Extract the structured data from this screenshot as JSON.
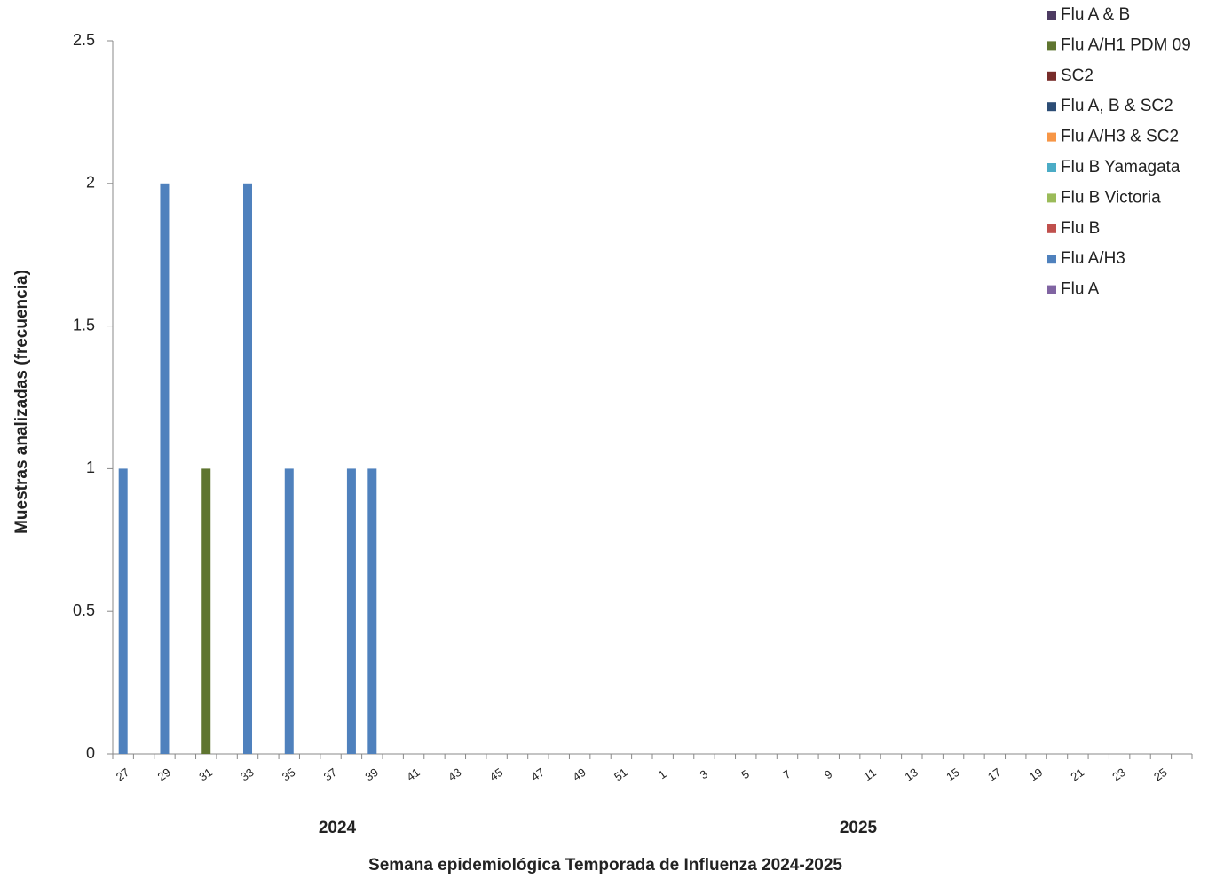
{
  "chart_data": {
    "type": "stacked_bar",
    "y_label": "Muestras analizadas (frecuencia)",
    "x_label": "Semana epidemiológica Temporada de Influenza 2024-2025",
    "groups": [
      "2024",
      "2025"
    ],
    "categories": [
      "27",
      null,
      "29",
      null,
      "31",
      null,
      "33",
      null,
      "35",
      null,
      "37",
      null,
      "39",
      null,
      "41",
      null,
      "43",
      null,
      "45",
      null,
      "47",
      null,
      "49",
      null,
      "51",
      null,
      "1",
      null,
      "3",
      null,
      "5",
      null,
      "7",
      null,
      "9",
      null,
      "11",
      null,
      "13",
      null,
      "15",
      null,
      "17",
      null,
      "19",
      null,
      "21",
      null,
      "23",
      null,
      "25",
      null
    ],
    "ylim": [
      0,
      2.5
    ],
    "yticks": [
      0,
      0.5,
      1,
      1.5,
      2,
      2.5
    ],
    "series": [
      {
        "name": "Flu A",
        "color": "#8064a2",
        "values": [
          0,
          0,
          0,
          0,
          0,
          0,
          0,
          0,
          0,
          0,
          0,
          0,
          0,
          0,
          0,
          0,
          0,
          0,
          0,
          0,
          0,
          0,
          0,
          0,
          0,
          0,
          0,
          0,
          0,
          0,
          0,
          0,
          0,
          0,
          0,
          0,
          0,
          0,
          0,
          0,
          0,
          0,
          0,
          0,
          0,
          0,
          0,
          0,
          0,
          0,
          0,
          0
        ]
      },
      {
        "name": "Flu A/H3",
        "color": "#4f81bd",
        "values": [
          1,
          0,
          2,
          0,
          0,
          0,
          2,
          0,
          1,
          0,
          0,
          1,
          1,
          0,
          0,
          0,
          0,
          0,
          0,
          0,
          0,
          0,
          0,
          0,
          0,
          0,
          0,
          0,
          0,
          0,
          0,
          0,
          0,
          0,
          0,
          0,
          0,
          0,
          0,
          0,
          0,
          0,
          0,
          0,
          0,
          0,
          0,
          0,
          0,
          0,
          0,
          0
        ]
      },
      {
        "name": "Flu B",
        "color": "#c0504d",
        "values": [
          0,
          0,
          0,
          0,
          0,
          0,
          0,
          0,
          0,
          0,
          0,
          0,
          0,
          0,
          0,
          0,
          0,
          0,
          0,
          0,
          0,
          0,
          0,
          0,
          0,
          0,
          0,
          0,
          0,
          0,
          0,
          0,
          0,
          0,
          0,
          0,
          0,
          0,
          0,
          0,
          0,
          0,
          0,
          0,
          0,
          0,
          0,
          0,
          0,
          0,
          0,
          0
        ]
      },
      {
        "name": "Flu B Victoria",
        "color": "#9bbb59",
        "values": [
          0,
          0,
          0,
          0,
          0,
          0,
          0,
          0,
          0,
          0,
          0,
          0,
          0,
          0,
          0,
          0,
          0,
          0,
          0,
          0,
          0,
          0,
          0,
          0,
          0,
          0,
          0,
          0,
          0,
          0,
          0,
          0,
          0,
          0,
          0,
          0,
          0,
          0,
          0,
          0,
          0,
          0,
          0,
          0,
          0,
          0,
          0,
          0,
          0,
          0,
          0,
          0
        ]
      },
      {
        "name": "Flu B Yamagata",
        "color": "#4bacc6",
        "values": [
          0,
          0,
          0,
          0,
          0,
          0,
          0,
          0,
          0,
          0,
          0,
          0,
          0,
          0,
          0,
          0,
          0,
          0,
          0,
          0,
          0,
          0,
          0,
          0,
          0,
          0,
          0,
          0,
          0,
          0,
          0,
          0,
          0,
          0,
          0,
          0,
          0,
          0,
          0,
          0,
          0,
          0,
          0,
          0,
          0,
          0,
          0,
          0,
          0,
          0,
          0,
          0
        ]
      },
      {
        "name": "Flu A/H3 & SC2",
        "color": "#f79646",
        "values": [
          0,
          0,
          0,
          0,
          0,
          0,
          0,
          0,
          0,
          0,
          0,
          0,
          0,
          0,
          0,
          0,
          0,
          0,
          0,
          0,
          0,
          0,
          0,
          0,
          0,
          0,
          0,
          0,
          0,
          0,
          0,
          0,
          0,
          0,
          0,
          0,
          0,
          0,
          0,
          0,
          0,
          0,
          0,
          0,
          0,
          0,
          0,
          0,
          0,
          0,
          0,
          0
        ]
      },
      {
        "name": "Flu A, B & SC2",
        "color": "#2c4d75",
        "values": [
          0,
          0,
          0,
          0,
          0,
          0,
          0,
          0,
          0,
          0,
          0,
          0,
          0,
          0,
          0,
          0,
          0,
          0,
          0,
          0,
          0,
          0,
          0,
          0,
          0,
          0,
          0,
          0,
          0,
          0,
          0,
          0,
          0,
          0,
          0,
          0,
          0,
          0,
          0,
          0,
          0,
          0,
          0,
          0,
          0,
          0,
          0,
          0,
          0,
          0,
          0,
          0
        ]
      },
      {
        "name": "SC2",
        "color": "#772c2a",
        "values": [
          0,
          0,
          0,
          0,
          0,
          0,
          0,
          0,
          0,
          0,
          0,
          0,
          0,
          0,
          0,
          0,
          0,
          0,
          0,
          0,
          0,
          0,
          0,
          0,
          0,
          0,
          0,
          0,
          0,
          0,
          0,
          0,
          0,
          0,
          0,
          0,
          0,
          0,
          0,
          0,
          0,
          0,
          0,
          0,
          0,
          0,
          0,
          0,
          0,
          0,
          0,
          0
        ]
      },
      {
        "name": "Flu A/H1 PDM 09",
        "color": "#5f7530",
        "values": [
          0,
          0,
          0,
          0,
          1,
          0,
          0,
          0,
          0,
          0,
          0,
          0,
          0,
          0,
          0,
          0,
          0,
          0,
          0,
          0,
          0,
          0,
          0,
          0,
          0,
          0,
          0,
          0,
          0,
          0,
          0,
          0,
          0,
          0,
          0,
          0,
          0,
          0,
          0,
          0,
          0,
          0,
          0,
          0,
          0,
          0,
          0,
          0,
          0,
          0,
          0,
          0
        ]
      },
      {
        "name": "Flu A & B",
        "color": "#4d3b62",
        "values": [
          0,
          0,
          0,
          0,
          0,
          0,
          0,
          0,
          0,
          0,
          0,
          0,
          0,
          0,
          0,
          0,
          0,
          0,
          0,
          0,
          0,
          0,
          0,
          0,
          0,
          0,
          0,
          0,
          0,
          0,
          0,
          0,
          0,
          0,
          0,
          0,
          0,
          0,
          0,
          0,
          0,
          0,
          0,
          0,
          0,
          0,
          0,
          0,
          0,
          0,
          0,
          0
        ]
      }
    ]
  }
}
